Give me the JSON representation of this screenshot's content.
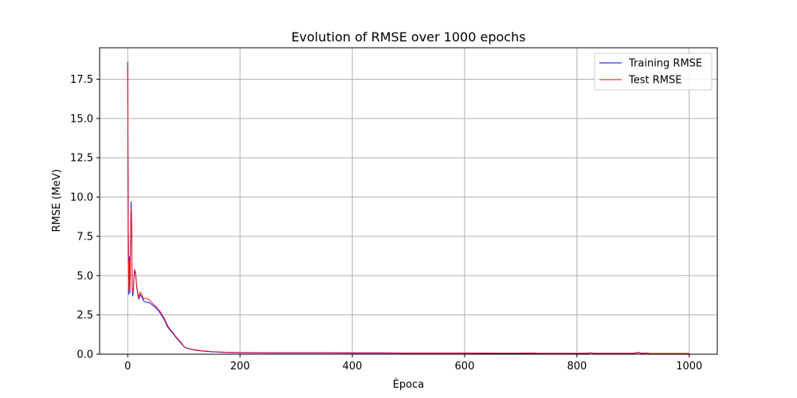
{
  "chart_data": {
    "type": "line",
    "title": "Evolution of RMSE over 1000 epochs",
    "xlabel": "Època",
    "ylabel": "RMSE (MeV)",
    "xlim": [
      -50,
      1050
    ],
    "ylim": [
      0,
      19.5
    ],
    "xticks": [
      0,
      200,
      400,
      600,
      800,
      1000
    ],
    "yticks": [
      0.0,
      2.5,
      5.0,
      7.5,
      10.0,
      12.5,
      15.0,
      17.5
    ],
    "xtick_labels": [
      "0",
      "200",
      "400",
      "600",
      "800",
      "1000"
    ],
    "ytick_labels": [
      "0.0",
      "2.5",
      "5.0",
      "7.5",
      "10.0",
      "12.5",
      "15.0",
      "17.5"
    ],
    "grid": true,
    "legend_position": "top-right",
    "series": [
      {
        "name": "Training RMSE",
        "color": "#0000ff",
        "points": [
          [
            0,
            18.6
          ],
          [
            1,
            9.0
          ],
          [
            2,
            3.8
          ],
          [
            3,
            6.2
          ],
          [
            4,
            3.9
          ],
          [
            5,
            7.0
          ],
          [
            6,
            9.7
          ],
          [
            7,
            8.5
          ],
          [
            8,
            4.2
          ],
          [
            9,
            3.7
          ],
          [
            10,
            4.0
          ],
          [
            12,
            5.3
          ],
          [
            14,
            5.1
          ],
          [
            16,
            4.3
          ],
          [
            18,
            3.8
          ],
          [
            20,
            3.5
          ],
          [
            22,
            3.8
          ],
          [
            24,
            3.7
          ],
          [
            26,
            3.6
          ],
          [
            28,
            3.4
          ],
          [
            30,
            3.35
          ],
          [
            35,
            3.3
          ],
          [
            40,
            3.25
          ],
          [
            45,
            3.1
          ],
          [
            50,
            2.95
          ],
          [
            55,
            2.75
          ],
          [
            60,
            2.5
          ],
          [
            65,
            2.2
          ],
          [
            70,
            1.8
          ],
          [
            75,
            1.55
          ],
          [
            80,
            1.35
          ],
          [
            85,
            1.1
          ],
          [
            90,
            0.9
          ],
          [
            95,
            0.7
          ],
          [
            100,
            0.48
          ],
          [
            105,
            0.38
          ],
          [
            110,
            0.33
          ],
          [
            120,
            0.26
          ],
          [
            130,
            0.21
          ],
          [
            140,
            0.18
          ],
          [
            150,
            0.15
          ],
          [
            175,
            0.11
          ],
          [
            200,
            0.09
          ],
          [
            250,
            0.08
          ],
          [
            300,
            0.08
          ],
          [
            350,
            0.08
          ],
          [
            400,
            0.07
          ],
          [
            450,
            0.07
          ],
          [
            500,
            0.06
          ],
          [
            550,
            0.06
          ],
          [
            600,
            0.06
          ],
          [
            650,
            0.05
          ],
          [
            700,
            0.05
          ],
          [
            725,
            0.06
          ],
          [
            730,
            0.04
          ],
          [
            750,
            0.04
          ],
          [
            800,
            0.04
          ],
          [
            820,
            0.05
          ],
          [
            825,
            0.09
          ],
          [
            830,
            0.04
          ],
          [
            850,
            0.04
          ],
          [
            900,
            0.04
          ],
          [
            910,
            0.1
          ],
          [
            915,
            0.04
          ],
          [
            925,
            0.07
          ],
          [
            930,
            0.03
          ],
          [
            950,
            0.03
          ],
          [
            1000,
            0.03
          ]
        ]
      },
      {
        "name": "Test RMSE",
        "color": "#ff0000",
        "points": [
          [
            0,
            18.3
          ],
          [
            1,
            8.8
          ],
          [
            2,
            4.0
          ],
          [
            3,
            6.0
          ],
          [
            4,
            4.1
          ],
          [
            5,
            6.8
          ],
          [
            6,
            9.3
          ],
          [
            7,
            8.2
          ],
          [
            8,
            4.4
          ],
          [
            9,
            3.9
          ],
          [
            10,
            4.1
          ],
          [
            12,
            5.4
          ],
          [
            14,
            5.2
          ],
          [
            16,
            4.4
          ],
          [
            18,
            3.9
          ],
          [
            20,
            3.6
          ],
          [
            22,
            3.95
          ],
          [
            24,
            3.85
          ],
          [
            26,
            3.7
          ],
          [
            28,
            3.5
          ],
          [
            30,
            3.55
          ],
          [
            35,
            3.55
          ],
          [
            40,
            3.4
          ],
          [
            45,
            3.2
          ],
          [
            50,
            3.05
          ],
          [
            55,
            2.85
          ],
          [
            60,
            2.6
          ],
          [
            65,
            2.3
          ],
          [
            70,
            1.9
          ],
          [
            75,
            1.6
          ],
          [
            80,
            1.4
          ],
          [
            85,
            1.15
          ],
          [
            90,
            0.95
          ],
          [
            95,
            0.75
          ],
          [
            100,
            0.5
          ],
          [
            105,
            0.4
          ],
          [
            110,
            0.35
          ],
          [
            120,
            0.28
          ],
          [
            130,
            0.23
          ],
          [
            140,
            0.2
          ],
          [
            150,
            0.17
          ],
          [
            175,
            0.13
          ],
          [
            200,
            0.11
          ],
          [
            250,
            0.1
          ],
          [
            300,
            0.1
          ],
          [
            350,
            0.1
          ],
          [
            400,
            0.09
          ],
          [
            450,
            0.09
          ],
          [
            500,
            0.08
          ],
          [
            550,
            0.08
          ],
          [
            600,
            0.08
          ],
          [
            650,
            0.07
          ],
          [
            700,
            0.07
          ],
          [
            725,
            0.08
          ],
          [
            730,
            0.06
          ],
          [
            750,
            0.06
          ],
          [
            800,
            0.06
          ],
          [
            820,
            0.07
          ],
          [
            825,
            0.1
          ],
          [
            830,
            0.06
          ],
          [
            850,
            0.06
          ],
          [
            900,
            0.06
          ],
          [
            910,
            0.12
          ],
          [
            915,
            0.06
          ],
          [
            925,
            0.08
          ],
          [
            930,
            0.05
          ],
          [
            950,
            0.05
          ],
          [
            1000,
            0.05
          ]
        ]
      }
    ]
  }
}
